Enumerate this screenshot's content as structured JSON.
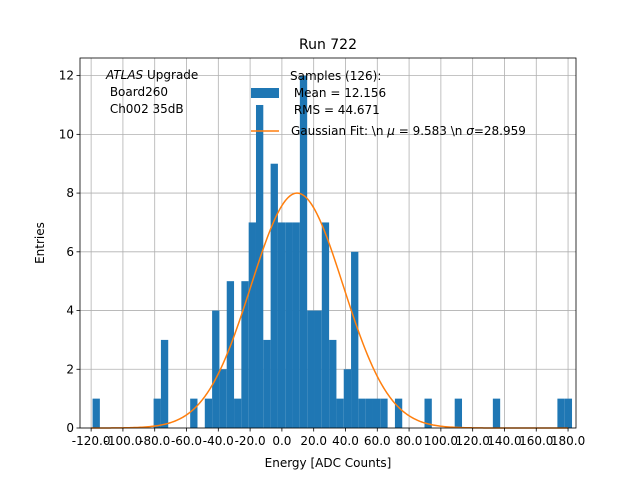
{
  "chart_data": {
    "type": "bar",
    "title": "Run 722",
    "xlabel": "Energy [ADC Counts]",
    "ylabel": "Entries",
    "xlim": [
      -127,
      185
    ],
    "ylim": [
      0,
      12.6
    ],
    "grid": true,
    "xticks": [
      -120,
      -100,
      -80,
      -60,
      -40,
      -20,
      0,
      20,
      40,
      60,
      80,
      100,
      120,
      140,
      160,
      180
    ],
    "xtick_labels": [
      "-120.0",
      "-100.0",
      "-80.0",
      "-60.0",
      "-40.0",
      "-20.0",
      "0.0",
      "20.0",
      "40.0",
      "60.0",
      "80.0",
      "100.0",
      "120.0",
      "140.0",
      "160.0",
      "180.0"
    ],
    "yticks": [
      0,
      2,
      4,
      6,
      8,
      10,
      12
    ],
    "ytick_labels": [
      "0",
      "2",
      "4",
      "6",
      "8",
      "10",
      "12"
    ],
    "bar_color": "#1f77b4",
    "fit_color": "#ff7f0e",
    "bin_width": 4.6,
    "bins": [
      {
        "x": -116.8,
        "y": 1
      },
      {
        "x": -78.4,
        "y": 1
      },
      {
        "x": -73.8,
        "y": 3
      },
      {
        "x": -55.4,
        "y": 1
      },
      {
        "x": -46.2,
        "y": 1
      },
      {
        "x": -41.6,
        "y": 4
      },
      {
        "x": -37.0,
        "y": 2
      },
      {
        "x": -32.4,
        "y": 5
      },
      {
        "x": -27.8,
        "y": 1
      },
      {
        "x": -23.2,
        "y": 5
      },
      {
        "x": -18.6,
        "y": 7
      },
      {
        "x": -14.0,
        "y": 11
      },
      {
        "x": -9.4,
        "y": 3
      },
      {
        "x": -4.8,
        "y": 9
      },
      {
        "x": -0.2,
        "y": 7
      },
      {
        "x": 4.4,
        "y": 7
      },
      {
        "x": 9.0,
        "y": 7
      },
      {
        "x": 13.6,
        "y": 12
      },
      {
        "x": 18.2,
        "y": 4
      },
      {
        "x": 22.8,
        "y": 4
      },
      {
        "x": 27.4,
        "y": 7
      },
      {
        "x": 32.0,
        "y": 3
      },
      {
        "x": 36.6,
        "y": 1
      },
      {
        "x": 41.2,
        "y": 2
      },
      {
        "x": 45.8,
        "y": 6
      },
      {
        "x": 50.4,
        "y": 1
      },
      {
        "x": 55.0,
        "y": 1
      },
      {
        "x": 59.6,
        "y": 1
      },
      {
        "x": 64.2,
        "y": 1
      },
      {
        "x": 73.4,
        "y": 1
      },
      {
        "x": 92.0,
        "y": 1
      },
      {
        "x": 111.0,
        "y": 1
      },
      {
        "x": 135.0,
        "y": 1
      },
      {
        "x": 175.6,
        "y": 1
      },
      {
        "x": 180.2,
        "y": 1
      }
    ],
    "fit": {
      "mu": 9.583,
      "sigma": 28.959,
      "amplitude": 8.0,
      "x_range": [
        -120,
        180
      ]
    },
    "legend_position": "top-center",
    "legend": {
      "samples_line1": "Samples (126):",
      "samples_line2": " Mean = 12.156",
      "samples_line3": " RMS = 44.671",
      "fit_prefix": "Gaussian Fit: \\n ",
      "fit_mu_symbol": "μ",
      "fit_mu_value": " = 9.583 \\n ",
      "fit_sigma_symbol": "σ",
      "fit_sigma_value": "=28.959"
    },
    "annotation": {
      "experiment": "ATLAS",
      "line1_suffix": " Upgrade",
      "line2": " Board260",
      "line3": " Ch002 35dB"
    }
  }
}
